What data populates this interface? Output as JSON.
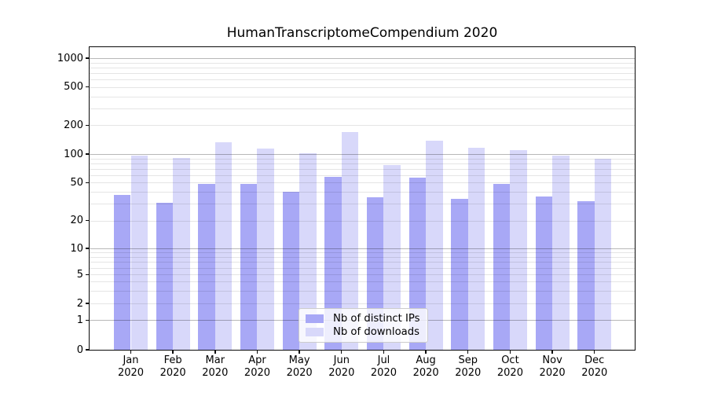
{
  "chart_data": {
    "type": "bar",
    "title": "HumanTranscriptomeCompendium 2020",
    "categories": [
      "Jan 2020",
      "Feb 2020",
      "Mar 2020",
      "Apr 2020",
      "May 2020",
      "Jun 2020",
      "Jul 2020",
      "Aug 2020",
      "Sep 2020",
      "Oct 2020",
      "Nov 2020",
      "Dec 2020"
    ],
    "series": [
      {
        "name": "Nb of distinct IPs",
        "color": "#a8a8f6",
        "values": [
          37,
          31,
          48,
          48,
          40,
          57,
          35,
          56,
          34,
          48,
          36,
          32
        ]
      },
      {
        "name": "Nb of downloads",
        "color": "#d8d8fa",
        "values": [
          97,
          91,
          133,
          114,
          102,
          170,
          77,
          137,
          116,
          110,
          96,
          90
        ]
      }
    ],
    "xlabel": "",
    "ylabel": "",
    "yscale": "symlog",
    "yticks": [
      0,
      1,
      2,
      5,
      10,
      20,
      50,
      100,
      200,
      500,
      1000
    ],
    "ylim": [
      0,
      1200
    ],
    "grid": "on",
    "legend_position": "lower center"
  },
  "colors": {
    "grid_major": "rgba(0,0,0,0.28)",
    "grid_minor": "rgba(0,0,0,0.10)",
    "spine": "#0a0a0a",
    "text": "#000000",
    "background": "#ffffff"
  }
}
